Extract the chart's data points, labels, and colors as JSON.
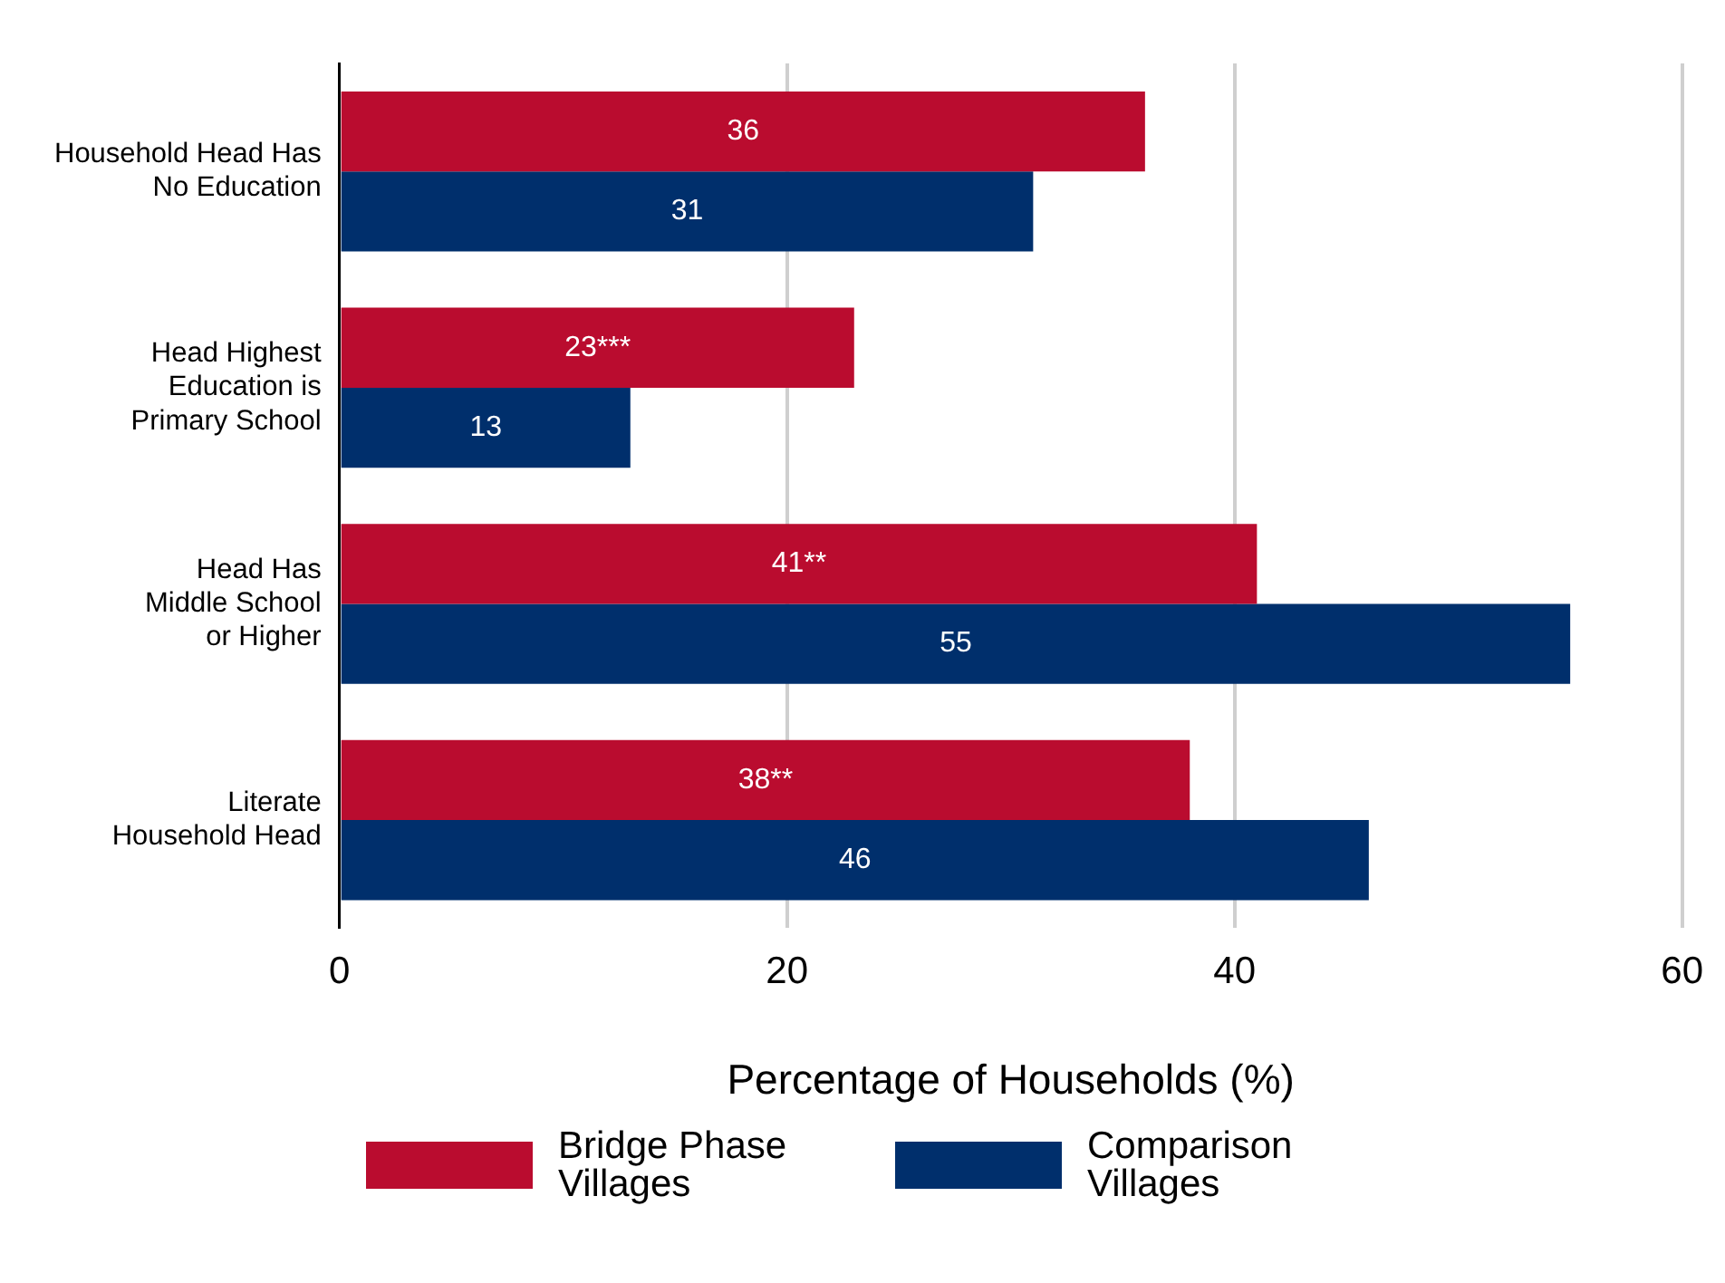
{
  "chart_data": {
    "type": "bar",
    "orientation": "horizontal",
    "xlabel": "Percentage of Households (%)",
    "categories": [
      "Household Head Has\nNo Education",
      "Head Highest\nEducation is\nPrimary School",
      "Head Has\nMiddle School\nor Higher",
      "Literate\nHousehold Head"
    ],
    "series": [
      {
        "name": "Bridge Phase Villages",
        "color": "#ba0c2f",
        "values": [
          36,
          23,
          41,
          38
        ],
        "value_labels": [
          "36",
          "23***",
          "41**",
          "38**"
        ]
      },
      {
        "name": "Comparison Villages",
        "color": "#002f6c",
        "values": [
          31,
          13,
          55,
          46
        ],
        "value_labels": [
          "31",
          "13",
          "55",
          "46"
        ]
      }
    ],
    "xlim": [
      0,
      60
    ],
    "xticks": [
      0,
      20,
      40,
      60
    ],
    "grid": "x",
    "legend": "bottom"
  }
}
